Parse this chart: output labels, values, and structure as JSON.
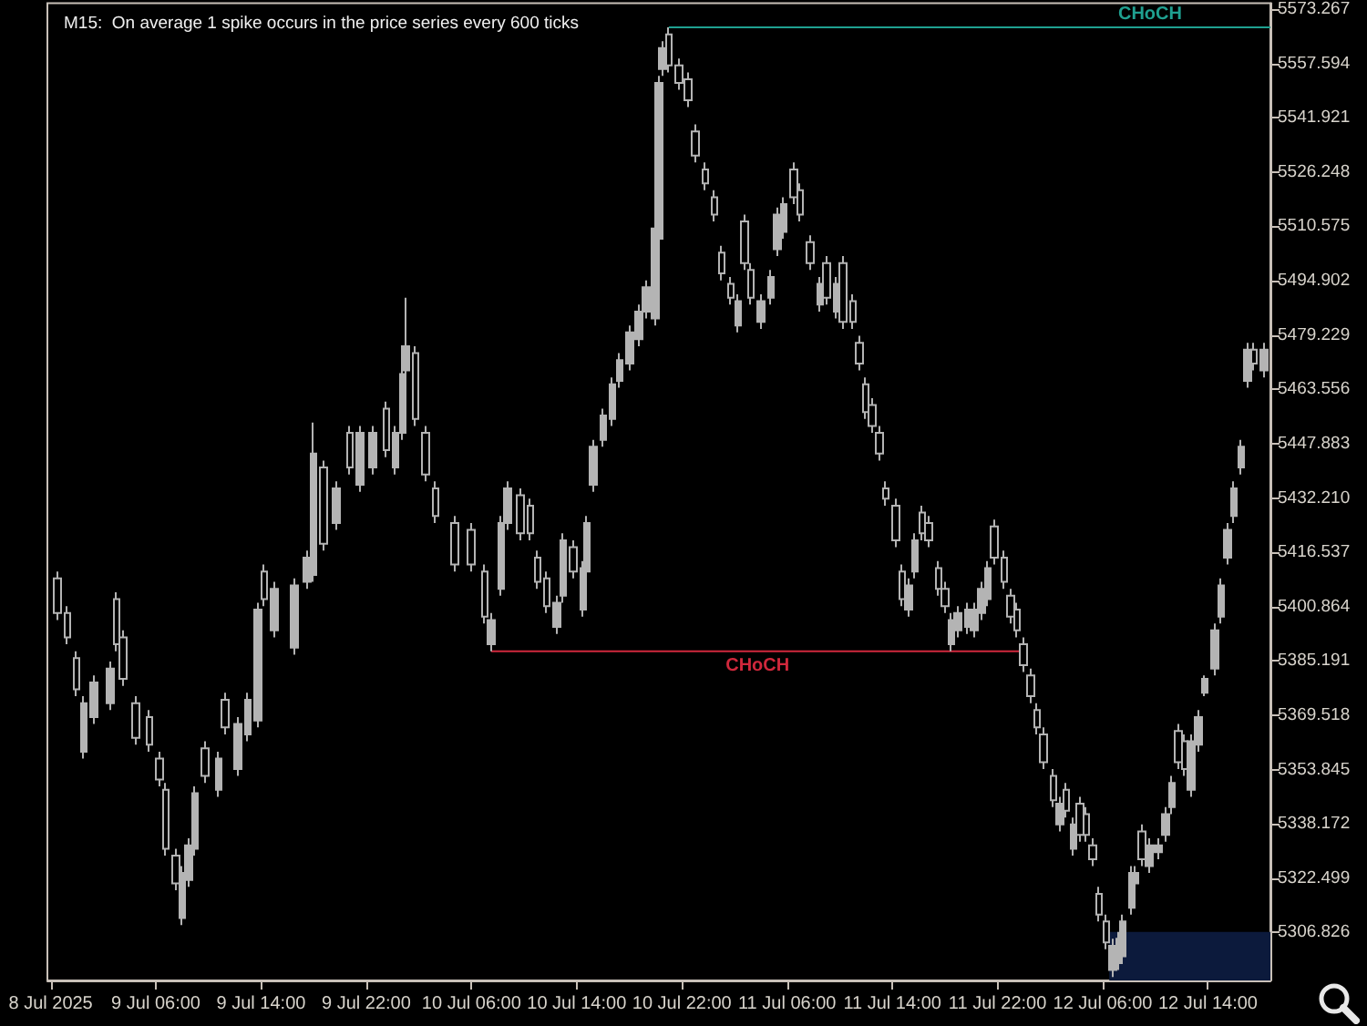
{
  "chart_data": {
    "type": "candlestick",
    "title": "M15:  On average 1 spike occurs in the price series every 600 ticks",
    "color": "#b4b4b4",
    "x": [
      "2025-07-08T22:30",
      "2025-07-08T23:15",
      "2025-07-09T00:00",
      "2025-07-09T00:30",
      "2025-07-09T01:15",
      "2025-07-09T02:30",
      "2025-07-09T03:00",
      "2025-07-09T03:30",
      "2025-07-09T04:30",
      "2025-07-09T05:30",
      "2025-07-09T06:15",
      "2025-07-09T06:45",
      "2025-07-09T07:30",
      "2025-07-09T08:00",
      "2025-07-09T08:30",
      "2025-07-09T09:00",
      "2025-07-09T09:45",
      "2025-07-09T10:45",
      "2025-07-09T11:15",
      "2025-07-09T12:15",
      "2025-07-09T13:00",
      "2025-07-09T13:45",
      "2025-07-09T14:15",
      "2025-07-09T15:00",
      "2025-07-09T16:30",
      "2025-07-09T17:30",
      "2025-07-09T18:00",
      "2025-07-09T18:45",
      "2025-07-09T19:45",
      "2025-07-09T20:45",
      "2025-07-09T21:30",
      "2025-07-09T22:30",
      "2025-07-09T23:30",
      "2025-07-10T00:15",
      "2025-07-10T00:45",
      "2025-07-10T01:00",
      "2025-07-10T01:45",
      "2025-07-10T02:30",
      "2025-07-10T03:15",
      "2025-07-10T04:45",
      "2025-07-10T06:00",
      "2025-07-10T07:00",
      "2025-07-10T07:30",
      "2025-07-10T08:15",
      "2025-07-10T08:45",
      "2025-07-10T09:45",
      "2025-07-10T10:30",
      "2025-07-10T11:00",
      "2025-07-10T11:45",
      "2025-07-10T12:30",
      "2025-07-10T13:00",
      "2025-07-10T13:45",
      "2025-07-10T14:30",
      "2025-07-10T14:45",
      "2025-07-10T15:15",
      "2025-07-10T16:00",
      "2025-07-10T16:45",
      "2025-07-10T17:15",
      "2025-07-10T18:00",
      "2025-07-10T18:45",
      "2025-07-10T19:15",
      "2025-07-10T20:00",
      "2025-07-10T20:15",
      "2025-07-10T20:30",
      "2025-07-10T21:00",
      "2025-07-10T21:45",
      "2025-07-10T22:30",
      "2025-07-10T23:00",
      "2025-07-10T23:45",
      "2025-07-11T00:30",
      "2025-07-11T01:00",
      "2025-07-11T01:45",
      "2025-07-11T02:15",
      "2025-07-11T02:45",
      "2025-07-11T03:15",
      "2025-07-11T04:00",
      "2025-07-11T04:45",
      "2025-07-11T05:15",
      "2025-07-11T05:45",
      "2025-07-11T06:30",
      "2025-07-11T07:00",
      "2025-07-11T07:45",
      "2025-07-11T08:30",
      "2025-07-11T09:00",
      "2025-07-11T09:45",
      "2025-07-11T10:15",
      "2025-07-11T11:00",
      "2025-07-11T11:30",
      "2025-07-11T12:00",
      "2025-07-11T12:30",
      "2025-07-11T13:00",
      "2025-07-11T13:30",
      "2025-07-11T14:15",
      "2025-07-11T14:45",
      "2025-07-11T15:15",
      "2025-07-11T15:45",
      "2025-07-11T16:15",
      "2025-07-11T16:45",
      "2025-07-11T17:30",
      "2025-07-11T18:00",
      "2025-07-11T18:30",
      "2025-07-11T19:00",
      "2025-07-11T19:45",
      "2025-07-11T20:15",
      "2025-07-11T20:45",
      "2025-07-11T21:15",
      "2025-07-11T21:45",
      "2025-07-11T22:30",
      "2025-07-11T23:00",
      "2025-07-11T23:30",
      "2025-07-12T00:00",
      "2025-07-12T00:30",
      "2025-07-12T01:00",
      "2025-07-12T01:30",
      "2025-07-12T02:15",
      "2025-07-12T02:45",
      "2025-07-12T03:15",
      "2025-07-12T03:45",
      "2025-07-12T04:15",
      "2025-07-12T04:45",
      "2025-07-12T05:15",
      "2025-07-12T05:45",
      "2025-07-12T06:15",
      "2025-07-12T06:45",
      "2025-07-12T07:15",
      "2025-07-12T07:30",
      "2025-07-12T08:15",
      "2025-07-12T08:30",
      "2025-07-12T09:00",
      "2025-07-12T09:30",
      "2025-07-12T10:15",
      "2025-07-12T10:45",
      "2025-07-12T11:15",
      "2025-07-12T11:45",
      "2025-07-12T12:15",
      "2025-07-12T12:45",
      "2025-07-12T13:15",
      "2025-07-12T13:45",
      "2025-07-12T14:30",
      "2025-07-12T15:00",
      "2025-07-12T15:30",
      "2025-07-12T16:00",
      "2025-07-12T16:30",
      "2025-07-12T17:00",
      "2025-07-12T17:30",
      "2025-07-12T18:15"
    ],
    "ohlc": [
      [
        5409,
        5411,
        5397,
        5399
      ],
      [
        5399,
        5401,
        5390,
        5392
      ],
      [
        5386,
        5388,
        5375,
        5377
      ],
      [
        5359,
        5375,
        5357,
        5373
      ],
      [
        5369,
        5381,
        5367,
        5379
      ],
      [
        5373,
        5385,
        5371,
        5383
      ],
      [
        5403,
        5405,
        5388,
        5390
      ],
      [
        5392,
        5394,
        5378,
        5380
      ],
      [
        5373,
        5375,
        5361,
        5363
      ],
      [
        5369,
        5371,
        5359,
        5361
      ],
      [
        5357,
        5359,
        5349,
        5351
      ],
      [
        5348,
        5350,
        5329,
        5331
      ],
      [
        5329,
        5331,
        5319,
        5321
      ],
      [
        5311,
        5326,
        5309,
        5324
      ],
      [
        5322,
        5334,
        5320,
        5332
      ],
      [
        5331,
        5349,
        5329,
        5347
      ],
      [
        5360,
        5362,
        5350,
        5352
      ],
      [
        5348,
        5359,
        5346,
        5357
      ],
      [
        5374,
        5376,
        5364,
        5366
      ],
      [
        5354,
        5369,
        5352,
        5367
      ],
      [
        5364,
        5376,
        5362,
        5374
      ],
      [
        5368,
        5402,
        5366,
        5400
      ],
      [
        5411,
        5413,
        5401,
        5403
      ],
      [
        5394,
        5408,
        5392,
        5406
      ],
      [
        5389,
        5409,
        5387,
        5407
      ],
      [
        5408,
        5417,
        5406,
        5415
      ],
      [
        5410,
        5454,
        5408,
        5445
      ],
      [
        5441,
        5443,
        5417,
        5419
      ],
      [
        5425,
        5437,
        5423,
        5435
      ],
      [
        5451,
        5453,
        5439,
        5441
      ],
      [
        5436,
        5453,
        5434,
        5451
      ],
      [
        5441,
        5453,
        5439,
        5451
      ],
      [
        5458,
        5460,
        5444,
        5446
      ],
      [
        5441,
        5453,
        5439,
        5451
      ],
      [
        5451,
        5470,
        5449,
        5468
      ],
      [
        5469,
        5490,
        5467,
        5476
      ],
      [
        5474,
        5476,
        5453,
        5455
      ],
      [
        5451,
        5453,
        5437,
        5439
      ],
      [
        5435,
        5437,
        5425,
        5427
      ],
      [
        5425,
        5427,
        5411,
        5413
      ],
      [
        5423,
        5425,
        5411,
        5413
      ],
      [
        5411,
        5413,
        5396,
        5398
      ],
      [
        5390,
        5399,
        5388,
        5397
      ],
      [
        5406,
        5427,
        5404,
        5425
      ],
      [
        5425,
        5437,
        5423,
        5435
      ],
      [
        5433,
        5435,
        5420,
        5422
      ],
      [
        5430,
        5432,
        5420,
        5422
      ],
      [
        5415,
        5417,
        5406,
        5408
      ],
      [
        5409,
        5411,
        5399,
        5401
      ],
      [
        5395,
        5404,
        5393,
        5402
      ],
      [
        5404,
        5422,
        5402,
        5420
      ],
      [
        5418,
        5420,
        5409,
        5411
      ],
      [
        5400,
        5414,
        5398,
        5412
      ],
      [
        5411,
        5427,
        5409,
        5425
      ],
      [
        5436,
        5449,
        5434,
        5447
      ],
      [
        5449,
        5458,
        5447,
        5456
      ],
      [
        5455,
        5467,
        5453,
        5465
      ],
      [
        5466,
        5474,
        5464,
        5472
      ],
      [
        5471,
        5482,
        5469,
        5480
      ],
      [
        5478,
        5488,
        5476,
        5486
      ],
      [
        5486,
        5495,
        5484,
        5493
      ],
      [
        5484,
        5512,
        5482,
        5510
      ],
      [
        5507,
        5554,
        5505,
        5552
      ],
      [
        5556,
        5564,
        5554,
        5562
      ],
      [
        5566,
        5568,
        5555,
        5557
      ],
      [
        5557,
        5559,
        5550,
        5552
      ],
      [
        5553,
        5555,
        5545,
        5547
      ],
      [
        5538,
        5540,
        5529,
        5531
      ],
      [
        5527,
        5529,
        5521,
        5523
      ],
      [
        5519,
        5521,
        5512,
        5514
      ],
      [
        5503,
        5505,
        5495,
        5497
      ],
      [
        5494,
        5496,
        5488,
        5490
      ],
      [
        5482,
        5491,
        5480,
        5489
      ],
      [
        5512,
        5514,
        5498,
        5500
      ],
      [
        5498,
        5500,
        5488,
        5490
      ],
      [
        5483,
        5491,
        5481,
        5489
      ],
      [
        5490,
        5498,
        5488,
        5496
      ],
      [
        5504,
        5516,
        5502,
        5514
      ],
      [
        5509,
        5519,
        5507,
        5517
      ],
      [
        5527,
        5529,
        5517,
        5519
      ],
      [
        5521,
        5523,
        5512,
        5514
      ],
      [
        5506,
        5508,
        5498,
        5500
      ],
      [
        5488,
        5496,
        5486,
        5494
      ],
      [
        5500,
        5502,
        5488,
        5490
      ],
      [
        5486,
        5496,
        5484,
        5494
      ],
      [
        5500,
        5502,
        5481,
        5483
      ],
      [
        5489,
        5491,
        5481,
        5483
      ],
      [
        5477,
        5479,
        5469,
        5471
      ],
      [
        5465,
        5467,
        5455,
        5457
      ],
      [
        5459,
        5461,
        5451,
        5453
      ],
      [
        5451,
        5453,
        5443,
        5445
      ],
      [
        5435,
        5437,
        5430,
        5432
      ],
      [
        5430,
        5432,
        5418,
        5420
      ],
      [
        5411,
        5413,
        5401,
        5403
      ],
      [
        5400,
        5409,
        5398,
        5407
      ],
      [
        5411,
        5422,
        5409,
        5420
      ],
      [
        5428,
        5430,
        5420,
        5422
      ],
      [
        5425,
        5427,
        5418,
        5420
      ],
      [
        5412,
        5414,
        5404,
        5406
      ],
      [
        5406,
        5408,
        5399,
        5401
      ],
      [
        5390,
        5399,
        5388,
        5397
      ],
      [
        5394,
        5401,
        5392,
        5399
      ],
      [
        5395,
        5402,
        5393,
        5400
      ],
      [
        5394,
        5402,
        5392,
        5400
      ],
      [
        5399,
        5408,
        5397,
        5406
      ],
      [
        5403,
        5414,
        5401,
        5412
      ],
      [
        5424,
        5426,
        5413,
        5415
      ],
      [
        5415,
        5417,
        5406,
        5408
      ],
      [
        5404,
        5406,
        5396,
        5398
      ],
      [
        5400,
        5402,
        5392,
        5394
      ],
      [
        5390,
        5392,
        5382,
        5384
      ],
      [
        5381,
        5383,
        5373,
        5375
      ],
      [
        5371,
        5373,
        5364,
        5366
      ],
      [
        5364,
        5366,
        5354,
        5356
      ],
      [
        5352,
        5354,
        5343,
        5345
      ],
      [
        5338,
        5346,
        5336,
        5344
      ],
      [
        5348,
        5350,
        5340,
        5342
      ],
      [
        5331,
        5340,
        5329,
        5338
      ],
      [
        5344,
        5346,
        5333,
        5335
      ],
      [
        5341,
        5343,
        5333,
        5335
      ],
      [
        5332,
        5334,
        5326,
        5328
      ],
      [
        5318,
        5320,
        5310,
        5312
      ],
      [
        5310,
        5312,
        5302,
        5304
      ],
      [
        5296,
        5305,
        5294,
        5303
      ],
      [
        5298,
        5307,
        5296,
        5305
      ],
      [
        5300,
        5312,
        5298,
        5310
      ],
      [
        5314,
        5326,
        5312,
        5324
      ],
      [
        5321,
        5326,
        5319,
        5324
      ],
      [
        5336,
        5338,
        5326,
        5328
      ],
      [
        5326,
        5334,
        5324,
        5332
      ],
      [
        5330,
        5334,
        5328,
        5332
      ],
      [
        5335,
        5343,
        5333,
        5341
      ],
      [
        5343,
        5352,
        5341,
        5350
      ],
      [
        5365,
        5367,
        5354,
        5356
      ],
      [
        5362,
        5364,
        5352,
        5354
      ],
      [
        5348,
        5364,
        5346,
        5362
      ],
      [
        5361,
        5371,
        5359,
        5369
      ],
      [
        5376,
        5381,
        5375,
        5380
      ],
      [
        5383,
        5396,
        5381,
        5394
      ],
      [
        5398,
        5409,
        5396,
        5407
      ],
      [
        5415,
        5425,
        5413,
        5423
      ],
      [
        5427,
        5437,
        5425,
        5435
      ],
      [
        5441,
        5449,
        5439,
        5447
      ],
      [
        5466,
        5477,
        5464,
        5475
      ],
      [
        5475,
        5477,
        5469,
        5471
      ],
      [
        5469,
        5477,
        5467,
        5475
      ]
    ],
    "series": [
      {
        "type": "area",
        "color": "#0c1a3c",
        "x": [
          "2025-07-12T06:30",
          "2025-07-12T18:45"
        ],
        "values": [
          5307,
          5307
        ]
      },
      {
        "type": "line",
        "name": "CHoCH",
        "color": "#d0283c",
        "x": [
          "2025-07-10T07:30",
          "2025-07-12T00:00"
        ],
        "values": [
          5388,
          5388
        ]
      },
      {
        "type": "line",
        "name": "CHoCH",
        "color": "#1fa090",
        "x": [
          "2025-07-10T21:00",
          "2025-07-12T18:45"
        ],
        "values": [
          5568,
          5568
        ]
      }
    ],
    "xlim": [
      "2025-07-08T21:45",
      "2025-07-12T18:45"
    ],
    "xticks": [
      {
        "value": "2025-07-08T22:00",
        "label": "8 Jul 2025"
      },
      {
        "value": "2025-07-09T06:00",
        "label": "9 Jul 06:00"
      },
      {
        "value": "2025-07-09T14:00",
        "label": "9 Jul 14:00"
      },
      {
        "value": "2025-07-09T22:00",
        "label": "9 Jul 22:00"
      },
      {
        "value": "2025-07-10T06:00",
        "label": "10 Jul 06:00"
      },
      {
        "value": "2025-07-10T14:00",
        "label": "10 Jul 14:00"
      },
      {
        "value": "2025-07-10T22:00",
        "label": "10 Jul 22:00"
      },
      {
        "value": "2025-07-11T06:00",
        "label": "11 Jul 06:00"
      },
      {
        "value": "2025-07-11T14:00",
        "label": "11 Jul 14:00"
      },
      {
        "value": "2025-07-11T22:00",
        "label": "11 Jul 22:00"
      },
      {
        "value": "2025-07-12T06:00",
        "label": "12 Jul 06:00"
      },
      {
        "value": "2025-07-12T14:00",
        "label": "12 Jul 14:00"
      }
    ],
    "ylim": [
      5293,
      5575
    ],
    "yticks": [
      5306.826,
      5322.499,
      5338.172,
      5353.845,
      5369.518,
      5385.191,
      5400.864,
      5416.537,
      {
        "value": 5432.21,
        "label": "5432.210"
      },
      5447.883,
      5463.556,
      5479.229,
      5494.902,
      5510.575,
      5526.248,
      5541.921,
      5557.594,
      5573.267
    ]
  }
}
